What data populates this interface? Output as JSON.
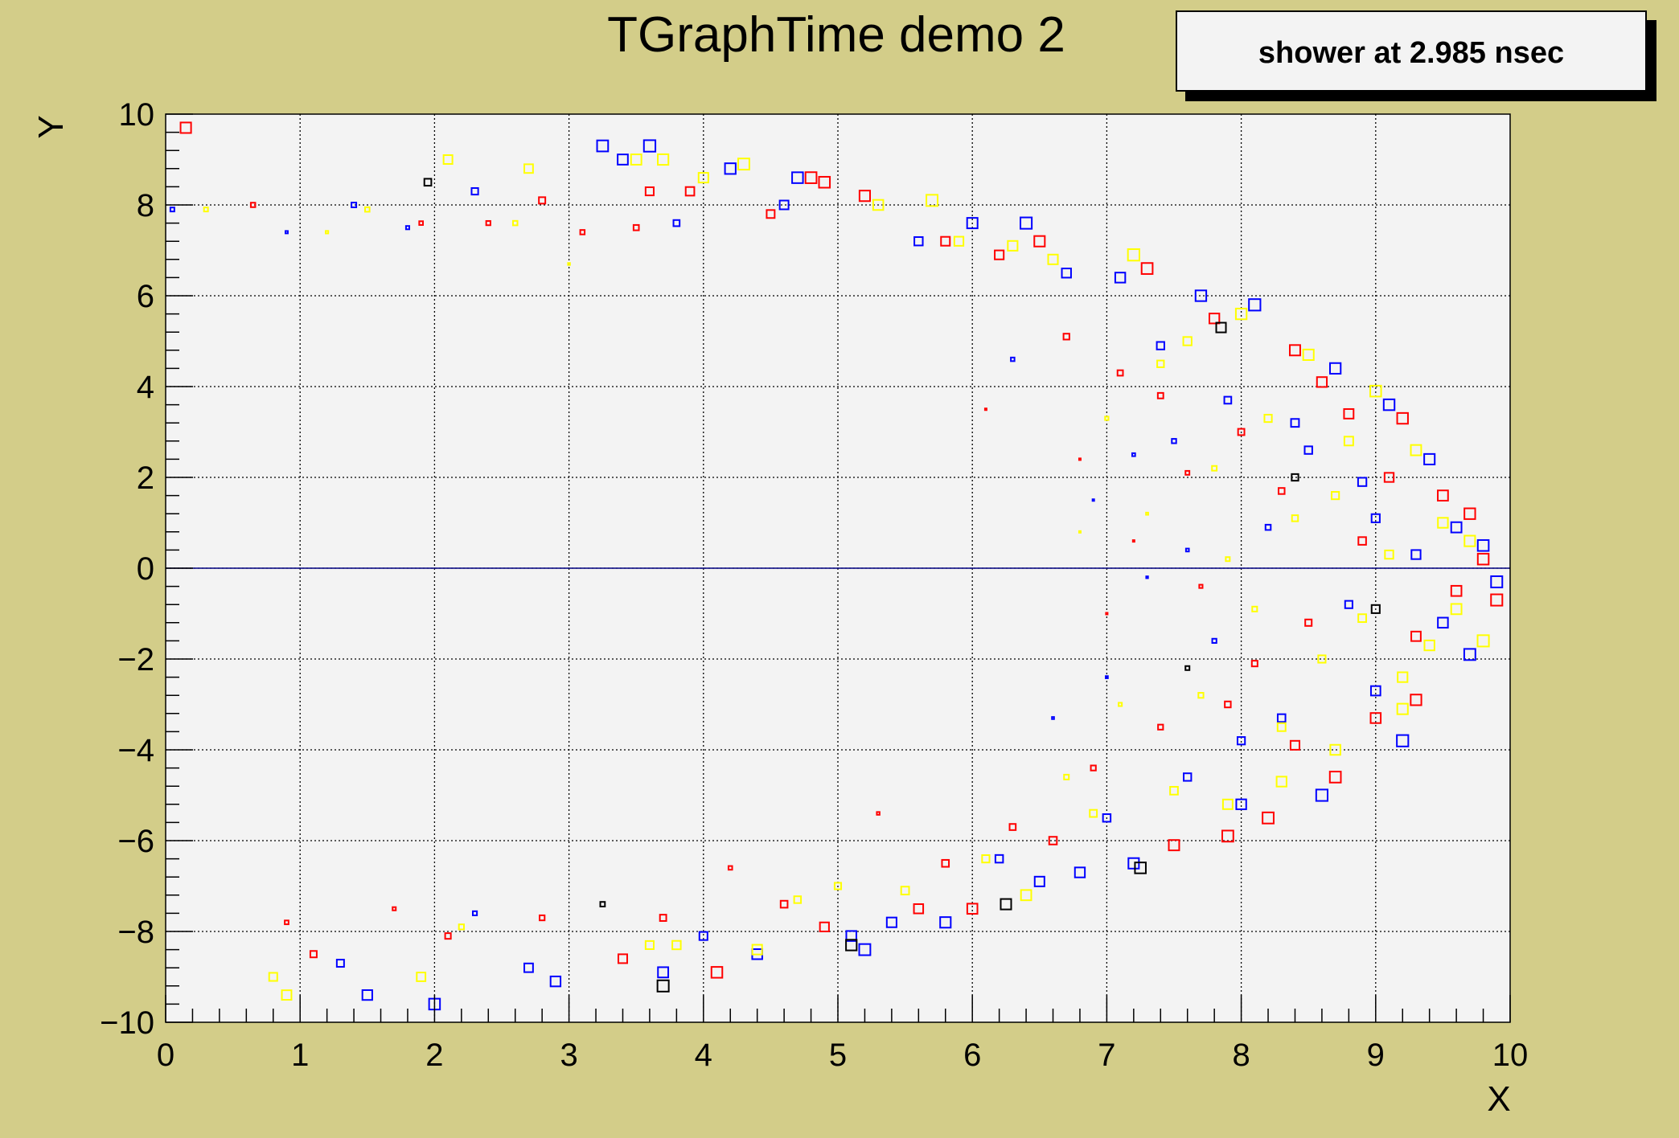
{
  "chart_data": {
    "type": "scatter",
    "title": "TGraphTime demo 2",
    "legend_text": "shower at 2.985 nsec",
    "xlabel": "X",
    "ylabel": "Y",
    "xlim": [
      0,
      10
    ],
    "ylim": [
      -10,
      10
    ],
    "x_ticks": [
      0,
      1,
      2,
      3,
      4,
      5,
      6,
      7,
      8,
      9,
      10
    ],
    "y_ticks": [
      -10,
      -8,
      -6,
      -4,
      -2,
      0,
      2,
      4,
      6,
      8,
      10
    ],
    "grid": true,
    "marker": "open-square",
    "reference_line_y": 0,
    "colors": {
      "background": "#d3cd89",
      "plot_bg": "#f3f3f3",
      "axis_line": "#000080"
    },
    "series": [
      {
        "color": "#ff0000",
        "points": [
          [
            0.15,
            9.7
          ],
          [
            0.65,
            8.0
          ],
          [
            0.9,
            -7.8
          ],
          [
            1.1,
            -8.5
          ],
          [
            1.7,
            -7.5
          ],
          [
            1.9,
            7.6
          ],
          [
            2.1,
            -8.1
          ],
          [
            2.4,
            7.6
          ],
          [
            2.8,
            8.1
          ],
          [
            2.8,
            -7.7
          ],
          [
            3.1,
            7.4
          ],
          [
            3.4,
            -8.6
          ],
          [
            3.5,
            7.5
          ],
          [
            3.6,
            8.3
          ],
          [
            3.7,
            -7.7
          ],
          [
            3.9,
            8.3
          ],
          [
            4.1,
            -8.9
          ],
          [
            4.2,
            -6.6
          ],
          [
            4.5,
            7.8
          ],
          [
            4.6,
            -7.4
          ],
          [
            4.8,
            8.6
          ],
          [
            4.9,
            -7.9
          ],
          [
            4.9,
            8.5
          ],
          [
            5.2,
            8.2
          ],
          [
            5.3,
            -5.4
          ],
          [
            5.6,
            -7.5
          ],
          [
            5.8,
            7.2
          ],
          [
            5.8,
            -6.5
          ],
          [
            6.0,
            -7.5
          ],
          [
            6.1,
            3.5
          ],
          [
            6.2,
            6.9
          ],
          [
            6.3,
            -5.7
          ],
          [
            6.5,
            7.2
          ],
          [
            6.6,
            -6.0
          ],
          [
            6.7,
            5.1
          ],
          [
            6.8,
            2.4
          ],
          [
            7.0,
            -1.0
          ],
          [
            7.1,
            4.3
          ],
          [
            7.2,
            0.6
          ],
          [
            7.3,
            6.6
          ],
          [
            7.4,
            -3.5
          ],
          [
            7.5,
            -6.1
          ],
          [
            7.6,
            2.1
          ],
          [
            7.7,
            -0.4
          ],
          [
            7.8,
            5.5
          ],
          [
            7.9,
            -5.9
          ],
          [
            8.0,
            3.0
          ],
          [
            8.1,
            -2.1
          ],
          [
            8.2,
            -5.5
          ],
          [
            8.3,
            1.7
          ],
          [
            8.4,
            4.8
          ],
          [
            8.5,
            -1.2
          ],
          [
            8.7,
            -4.6
          ],
          [
            8.8,
            3.4
          ],
          [
            8.9,
            0.6
          ],
          [
            9.0,
            -3.3
          ],
          [
            9.1,
            2.0
          ],
          [
            9.3,
            -1.5
          ],
          [
            9.5,
            1.6
          ],
          [
            9.6,
            -0.5
          ],
          [
            9.8,
            0.2
          ],
          [
            9.9,
            -0.7
          ],
          [
            9.3,
            -2.9
          ],
          [
            8.6,
            4.1
          ],
          [
            9.7,
            1.2
          ],
          [
            7.4,
            3.8
          ],
          [
            7.9,
            -3.0
          ],
          [
            8.4,
            -3.9
          ],
          [
            9.2,
            3.3
          ],
          [
            6.9,
            -4.4
          ]
        ]
      },
      {
        "color": "#0000ff",
        "points": [
          [
            0.05,
            7.9
          ],
          [
            0.9,
            7.4
          ],
          [
            1.3,
            -8.7
          ],
          [
            1.4,
            8.0
          ],
          [
            1.5,
            -9.4
          ],
          [
            1.8,
            7.5
          ],
          [
            2.0,
            -9.6
          ],
          [
            2.3,
            8.3
          ],
          [
            2.3,
            -7.6
          ],
          [
            2.7,
            -8.8
          ],
          [
            2.9,
            -9.1
          ],
          [
            3.25,
            9.3
          ],
          [
            3.4,
            9.0
          ],
          [
            3.6,
            9.3
          ],
          [
            3.7,
            -8.9
          ],
          [
            3.8,
            7.6
          ],
          [
            4.0,
            -8.1
          ],
          [
            4.2,
            8.8
          ],
          [
            4.4,
            -8.5
          ],
          [
            4.6,
            8.0
          ],
          [
            4.7,
            8.6
          ],
          [
            5.1,
            -8.1
          ],
          [
            5.2,
            -8.4
          ],
          [
            5.4,
            -7.8
          ],
          [
            5.6,
            7.2
          ],
          [
            5.8,
            -7.8
          ],
          [
            6.0,
            7.6
          ],
          [
            6.2,
            -6.4
          ],
          [
            6.4,
            7.6
          ],
          [
            6.5,
            -6.9
          ],
          [
            6.7,
            6.5
          ],
          [
            6.8,
            -6.7
          ],
          [
            6.9,
            1.5
          ],
          [
            7.0,
            -2.4
          ],
          [
            7.1,
            6.4
          ],
          [
            7.2,
            -6.5
          ],
          [
            7.3,
            -0.2
          ],
          [
            7.4,
            4.9
          ],
          [
            7.5,
            2.8
          ],
          [
            7.6,
            -4.6
          ],
          [
            7.7,
            6.0
          ],
          [
            7.8,
            -1.6
          ],
          [
            7.9,
            3.7
          ],
          [
            8.0,
            -5.2
          ],
          [
            8.1,
            5.8
          ],
          [
            8.2,
            0.9
          ],
          [
            8.3,
            -3.3
          ],
          [
            8.5,
            2.6
          ],
          [
            8.6,
            -5.0
          ],
          [
            8.7,
            4.4
          ],
          [
            8.8,
            -0.8
          ],
          [
            8.9,
            1.9
          ],
          [
            9.0,
            -2.7
          ],
          [
            9.1,
            3.6
          ],
          [
            9.2,
            -3.8
          ],
          [
            9.3,
            0.3
          ],
          [
            9.4,
            2.4
          ],
          [
            9.5,
            -1.2
          ],
          [
            9.6,
            0.9
          ],
          [
            9.7,
            -1.9
          ],
          [
            9.8,
            0.5
          ],
          [
            9.9,
            -0.3
          ],
          [
            8.4,
            3.2
          ],
          [
            7.6,
            0.4
          ],
          [
            7.2,
            2.5
          ],
          [
            8.0,
            -3.8
          ],
          [
            9.0,
            1.1
          ],
          [
            6.6,
            -3.3
          ],
          [
            6.3,
            4.6
          ],
          [
            7.0,
            -5.5
          ]
        ]
      },
      {
        "color": "#ffff00",
        "points": [
          [
            0.3,
            7.9
          ],
          [
            0.8,
            -9.0
          ],
          [
            0.9,
            -9.4
          ],
          [
            1.2,
            7.4
          ],
          [
            1.5,
            7.9
          ],
          [
            1.9,
            -9.0
          ],
          [
            2.1,
            9.0
          ],
          [
            2.2,
            -7.9
          ],
          [
            2.7,
            8.8
          ],
          [
            2.6,
            7.6
          ],
          [
            3.0,
            6.7
          ],
          [
            3.5,
            9.0
          ],
          [
            3.6,
            -8.3
          ],
          [
            3.7,
            9.0
          ],
          [
            3.8,
            -8.3
          ],
          [
            4.0,
            8.6
          ],
          [
            4.3,
            8.9
          ],
          [
            4.4,
            -8.4
          ],
          [
            4.7,
            -7.3
          ],
          [
            5.0,
            -7.0
          ],
          [
            5.3,
            8.0
          ],
          [
            5.5,
            -7.1
          ],
          [
            5.7,
            8.1
          ],
          [
            5.9,
            7.2
          ],
          [
            6.1,
            -6.4
          ],
          [
            6.3,
            7.1
          ],
          [
            6.4,
            -7.2
          ],
          [
            6.6,
            6.8
          ],
          [
            6.7,
            -4.6
          ],
          [
            6.9,
            -5.4
          ],
          [
            7.0,
            3.3
          ],
          [
            7.1,
            -3.0
          ],
          [
            7.2,
            6.9
          ],
          [
            7.3,
            1.2
          ],
          [
            7.5,
            -4.9
          ],
          [
            7.6,
            5.0
          ],
          [
            7.7,
            -2.8
          ],
          [
            7.8,
            2.2
          ],
          [
            7.9,
            -5.2
          ],
          [
            8.0,
            5.6
          ],
          [
            8.1,
            -0.9
          ],
          [
            8.2,
            3.3
          ],
          [
            8.3,
            -4.7
          ],
          [
            8.4,
            1.1
          ],
          [
            8.5,
            4.7
          ],
          [
            8.6,
            -2.0
          ],
          [
            8.7,
            -4.0
          ],
          [
            8.8,
            2.8
          ],
          [
            8.9,
            -1.1
          ],
          [
            9.0,
            3.9
          ],
          [
            9.1,
            0.3
          ],
          [
            9.2,
            -2.4
          ],
          [
            9.3,
            2.6
          ],
          [
            9.4,
            -1.7
          ],
          [
            9.5,
            1.0
          ],
          [
            9.6,
            -0.9
          ],
          [
            9.7,
            0.6
          ],
          [
            9.8,
            -1.6
          ],
          [
            8.3,
            -3.5
          ],
          [
            7.4,
            4.5
          ],
          [
            6.8,
            0.8
          ],
          [
            7.9,
            0.2
          ],
          [
            9.2,
            -3.1
          ],
          [
            8.7,
            1.6
          ]
        ]
      },
      {
        "color": "#000000",
        "points": [
          [
            1.95,
            8.5
          ],
          [
            3.25,
            -7.4
          ],
          [
            3.7,
            -9.2
          ],
          [
            5.1,
            -8.3
          ],
          [
            6.25,
            -7.4
          ],
          [
            7.25,
            -6.6
          ],
          [
            7.85,
            5.3
          ],
          [
            8.4,
            2.0
          ],
          [
            9.0,
            -0.9
          ],
          [
            7.6,
            -2.2
          ]
        ]
      }
    ]
  }
}
